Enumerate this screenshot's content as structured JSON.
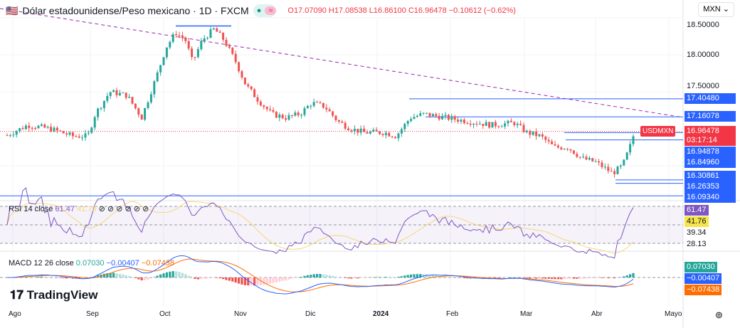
{
  "header": {
    "title": "Dólar estadounidense/Peso mexicano · 1D · FXCM",
    "open": "O17.07090",
    "high": "H17.08538",
    "low": "L16.86100",
    "close": "C16.96478",
    "change": "−0.10612 (−0.62%)"
  },
  "currency_select": "MXN",
  "symbol_tag": "USDMXN",
  "countdown": "03:17:14",
  "price_axis": [
    "18.50000",
    "18.00000",
    "17.50000"
  ],
  "levels": [
    "17.40480",
    "17.16078",
    "16.96478",
    "16.94878",
    "16.84960",
    "16.30861",
    "16.26353",
    "16.09340"
  ],
  "rsi": {
    "label": "RSI 14 close",
    "value": "61.47",
    "ma": "41.76",
    "extra": "⊘ ⊘ ⊘ ⊘ ⊘ ⊘",
    "axis": [
      "61.47",
      "41.76",
      "39.34",
      "28.13"
    ]
  },
  "macd": {
    "label": "MACD 12 26 close",
    "hist": "0.07030",
    "macd": "−0.00407",
    "signal": "−0.07438",
    "axis": [
      "0.07030",
      "−0.00407",
      "−0.07438"
    ]
  },
  "logo": "TradingView",
  "time_axis": [
    "Ago",
    "Sep",
    "Oct",
    "Nov",
    "Dic",
    "2024",
    "Feb",
    "Mar",
    "Abr",
    "Mayo"
  ],
  "colors": {
    "up": "#26a69a",
    "down": "#ef5350",
    "level": "#2962ff",
    "rsi": "#7e57c2",
    "rsi_ma": "#f7d774",
    "macd": "#2962ff",
    "signal": "#ff6d00"
  },
  "chart_data": {
    "type": "candlestick",
    "symbol": "USDMXN",
    "ylim": [
      16.0,
      18.5
    ],
    "points": [
      [
        "2023-08-01",
        16.95
      ],
      [
        "2023-08-07",
        17.05
      ],
      [
        "2023-08-16",
        17.0
      ],
      [
        "2023-08-25",
        16.9
      ],
      [
        "2023-08-31",
        16.9
      ],
      [
        "2023-09-03",
        17.2
      ],
      [
        "2023-09-09",
        17.5
      ],
      [
        "2023-09-16",
        17.45
      ],
      [
        "2023-09-22",
        17.15
      ],
      [
        "2023-09-28",
        17.7
      ],
      [
        "2023-10-02",
        18.1
      ],
      [
        "2023-10-06",
        18.3
      ],
      [
        "2023-10-10",
        18.2
      ],
      [
        "2023-10-13",
        17.9
      ],
      [
        "2023-10-17",
        18.2
      ],
      [
        "2023-10-22",
        18.35
      ],
      [
        "2023-10-26",
        18.2
      ],
      [
        "2023-10-31",
        17.9
      ],
      [
        "2023-11-04",
        17.6
      ],
      [
        "2023-11-09",
        17.4
      ],
      [
        "2023-11-15",
        17.2
      ],
      [
        "2023-11-21",
        17.15
      ],
      [
        "2023-11-27",
        17.2
      ],
      [
        "2023-12-02",
        17.35
      ],
      [
        "2023-12-08",
        17.3
      ],
      [
        "2023-12-14",
        17.1
      ],
      [
        "2023-12-20",
        17.0
      ],
      [
        "2023-12-26",
        16.95
      ],
      [
        "2024-01-04",
        16.95
      ],
      [
        "2024-01-09",
        16.9
      ],
      [
        "2024-01-15",
        17.15
      ],
      [
        "2024-01-21",
        17.2
      ],
      [
        "2024-01-30",
        17.15
      ],
      [
        "2024-02-08",
        17.1
      ],
      [
        "2024-02-17",
        17.05
      ],
      [
        "2024-02-26",
        17.08
      ],
      [
        "2024-03-02",
        16.95
      ],
      [
        "2024-03-08",
        16.9
      ],
      [
        "2024-03-14",
        16.75
      ],
      [
        "2024-03-20",
        16.75
      ],
      [
        "2024-03-26",
        16.6
      ],
      [
        "2024-04-01",
        16.55
      ],
      [
        "2024-04-08",
        16.4
      ],
      [
        "2024-04-12",
        16.5
      ],
      [
        "2024-04-15",
        16.75
      ],
      [
        "2024-04-17",
        16.96
      ]
    ]
  }
}
